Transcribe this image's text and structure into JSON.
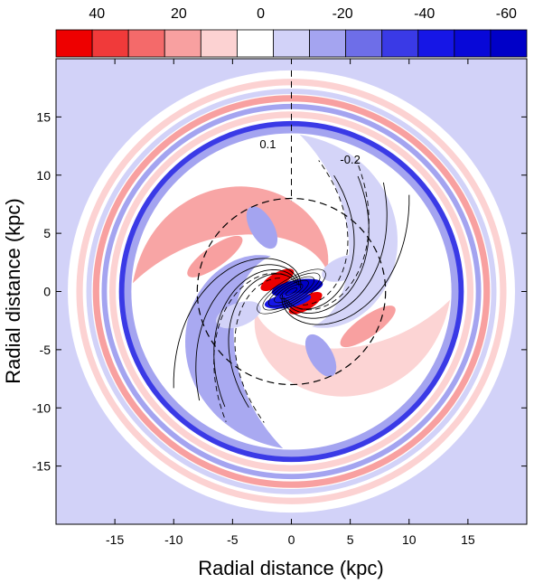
{
  "chart_data": {
    "type": "heatmap",
    "title": "",
    "xlabel": "Radial distance (kpc)",
    "ylabel": "Radial distance (kpc)",
    "xlim": [
      -20,
      20
    ],
    "ylim": [
      -20,
      20
    ],
    "xticks": [
      -15,
      -10,
      -5,
      0,
      5,
      10,
      15
    ],
    "yticks": [
      15,
      10,
      5,
      0,
      -5,
      -10,
      -15
    ],
    "colorbar": {
      "tick_labels": [
        "40",
        "20",
        "0",
        "-20",
        "-40",
        "-60"
      ],
      "tick_values": [
        40,
        20,
        0,
        -20,
        -40,
        -60
      ],
      "range": [
        50,
        -65
      ],
      "colors": [
        "#ee0000",
        "#f03a3a",
        "#f46a6a",
        "#f8a0a0",
        "#fcd2d2",
        "#ffffff",
        "#d2d2f8",
        "#a4a4f0",
        "#6e6ee8",
        "#3a3ae6",
        "#1616e6",
        "#0808d8",
        "#0000c8"
      ]
    },
    "contour_labels": [
      {
        "text": "0.1",
        "x": -2,
        "y": 12.3
      },
      {
        "text": "-0.2",
        "x": 5,
        "y": 11.0
      }
    ],
    "rings": [
      {
        "r": 18.0,
        "width": 0.55,
        "color": "#fcd2d2"
      },
      {
        "r": 17.2,
        "width": 0.45,
        "color": "#d2d2f8"
      },
      {
        "r": 16.6,
        "width": 0.55,
        "color": "#f8a0a0"
      },
      {
        "r": 15.9,
        "width": 0.45,
        "color": "#a4a4f0"
      },
      {
        "r": 15.2,
        "width": 0.55,
        "color": "#fcd2d2"
      },
      {
        "r": 14.4,
        "width": 0.5,
        "color": "#3a3ae6"
      },
      {
        "r": 13.9,
        "width": 0.6,
        "color": "#a4a4f0"
      }
    ],
    "spiral_arms": [
      {
        "color": "#f8a0a0",
        "phase": 30
      },
      {
        "color": "#fcd2d2",
        "phase": 210
      },
      {
        "color": "#a4a4f0",
        "phase": 120
      },
      {
        "color": "#d2d2f8",
        "phase": 300
      }
    ],
    "core_lobes": [
      {
        "x": -1.2,
        "y": 1.0,
        "rx": 1.6,
        "ry": 0.6,
        "angle": -30,
        "color": "#ee0000"
      },
      {
        "x": 1.2,
        "y": -1.0,
        "rx": 1.6,
        "ry": 0.6,
        "angle": -30,
        "color": "#ee0000"
      },
      {
        "x": 0.5,
        "y": 0.3,
        "rx": 2.2,
        "ry": 0.7,
        "angle": -10,
        "color": "#0000c8"
      },
      {
        "x": -0.3,
        "y": -0.8,
        "rx": 2.0,
        "ry": 0.6,
        "angle": -10,
        "color": "#1616e6"
      }
    ],
    "blobs": [
      {
        "x": -2.5,
        "y": 5.5,
        "rx": 2.0,
        "ry": 1.0,
        "angle": 60,
        "color": "#a4a4f0"
      },
      {
        "x": 2.5,
        "y": -5.5,
        "rx": 2.0,
        "ry": 1.0,
        "angle": 60,
        "color": "#a4a4f0"
      },
      {
        "x": -6.5,
        "y": 3.0,
        "rx": 2.8,
        "ry": 0.9,
        "angle": -35,
        "color": "#f8a0a0"
      },
      {
        "x": 6.5,
        "y": -3.0,
        "rx": 2.8,
        "ry": 0.9,
        "angle": -35,
        "color": "#f8a0a0"
      },
      {
        "x": 4.5,
        "y": 2.0,
        "rx": 2.0,
        "ry": 1.0,
        "angle": -20,
        "color": "#d2d2f8"
      },
      {
        "x": -4.5,
        "y": -2.0,
        "rx": 2.0,
        "ry": 1.0,
        "angle": -20,
        "color": "#d2d2f8"
      }
    ],
    "dashed_circle_r": 8.0,
    "background_color": "#d2d2f8",
    "grid": false,
    "legend": "colorbar-top"
  }
}
